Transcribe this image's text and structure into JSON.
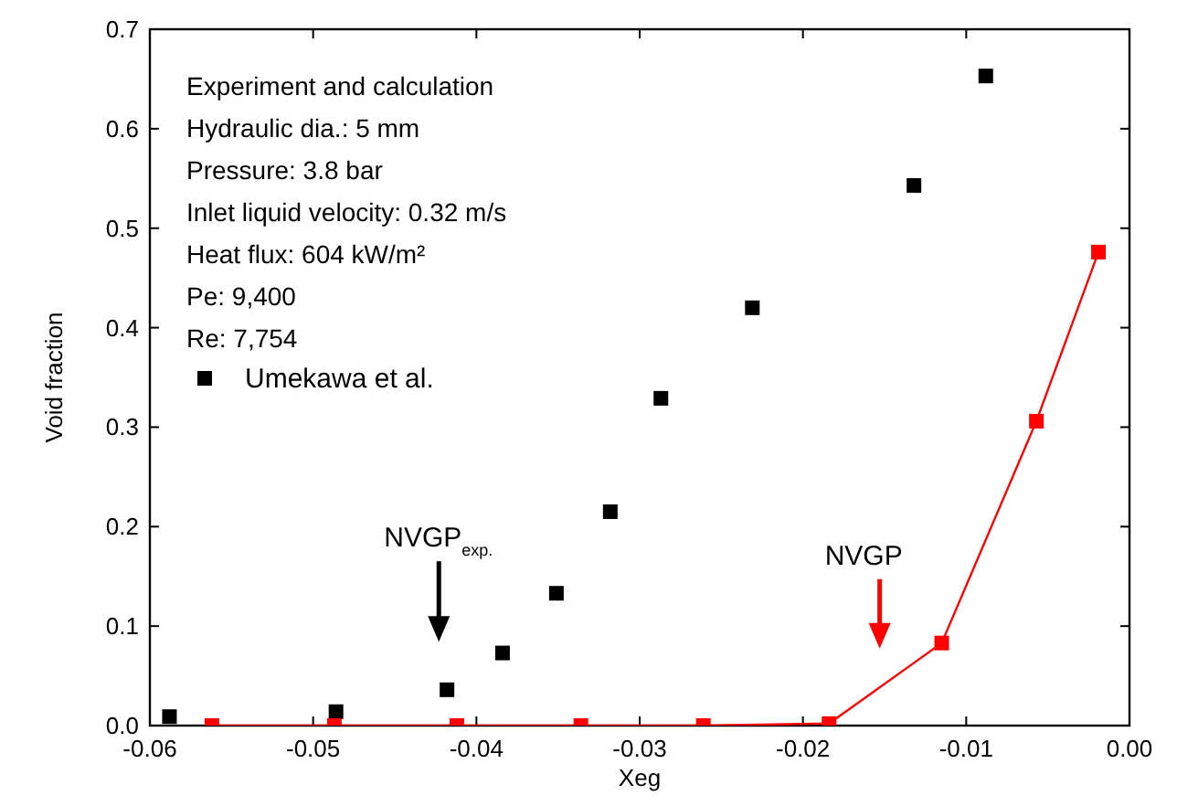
{
  "chart_data": {
    "type": "scatter",
    "xlabel": "Xeg",
    "ylabel": "Void fraction",
    "xlim": [
      -0.06,
      0
    ],
    "ylim": [
      0,
      0.7
    ],
    "xticks": [
      -0.06,
      -0.05,
      -0.04,
      -0.03,
      -0.02,
      -0.01,
      {
        "value": 0,
        "label": "0.00"
      }
    ],
    "yticks": [
      {
        "value": 0,
        "label": "0.0"
      },
      0.1,
      0.2,
      0.3,
      0.4,
      0.5,
      0.6,
      0.7
    ],
    "legend": "left",
    "marker": "square",
    "grid": false,
    "series": [
      {
        "name": "Umekawa et al.",
        "color": "#000000",
        "x": [
          -0.0588,
          -0.0486,
          -0.0418,
          -0.0384,
          -0.0351,
          -0.0318,
          -0.0287,
          -0.0231,
          -0.0132,
          -0.0088
        ],
        "values": [
          0.009,
          0.014,
          0.036,
          0.073,
          0.133,
          0.215,
          0.329,
          0.42,
          0.543,
          0.653
        ]
      },
      {
        "type": "line",
        "color": "#ff0000",
        "line_style": "solid",
        "x": [
          -0.0562,
          -0.0487,
          -0.0412,
          -0.0336,
          -0.0261,
          -0.0184,
          -0.0115,
          -0.0057,
          -0.0019
        ],
        "values": [
          0,
          0,
          0,
          0,
          0,
          0.002,
          0.083,
          0.306,
          0.476
        ]
      }
    ],
    "annotations": [
      "Experiment and calculation",
      "Hydraulic dia.: 5 mm",
      "Pressure: 3.8 bar",
      "Inlet liquid velocity: 0.32 m/s",
      "Heat flux: 604 kW/m²",
      "Pe: 9,400",
      "Re: 7,754",
      "NVGP$_{exp.}$",
      "NVGP"
    ]
  }
}
